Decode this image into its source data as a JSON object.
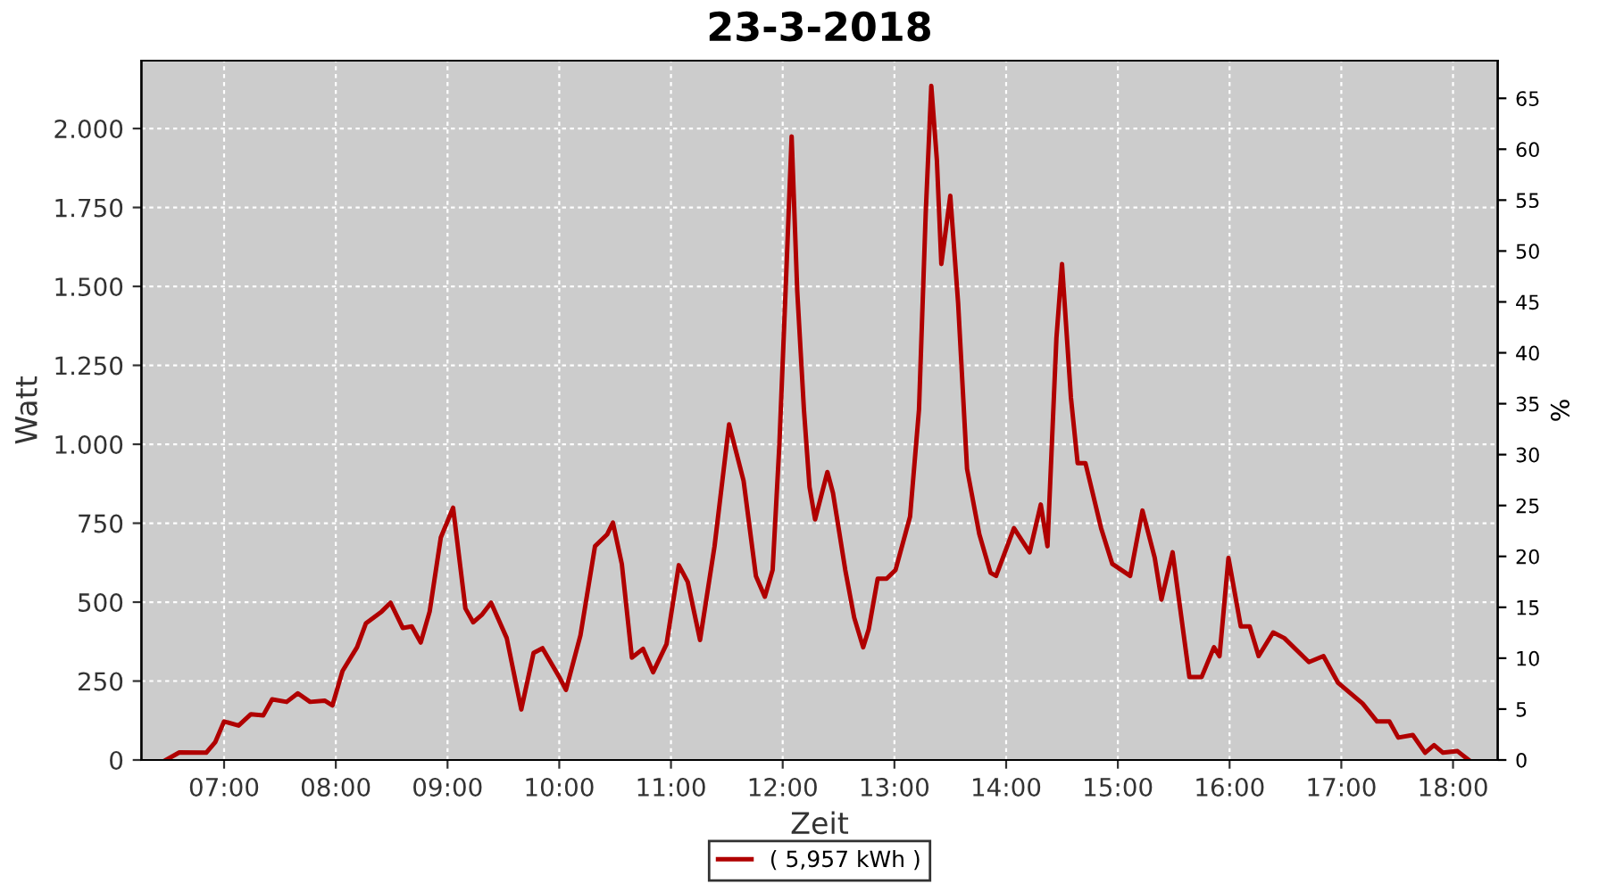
{
  "chart_data": {
    "type": "line",
    "title": "23-3-2018",
    "xlabel": "Zeit",
    "ylabel": "Watt",
    "y2label": "%",
    "xlim": [
      6.26,
      18.4
    ],
    "xticks": [
      {
        "value": 7,
        "label": "07:00"
      },
      {
        "value": 8,
        "label": "08:00"
      },
      {
        "value": 9,
        "label": "09:00"
      },
      {
        "value": 10,
        "label": "10:00"
      },
      {
        "value": 11,
        "label": "11:00"
      },
      {
        "value": 12,
        "label": "12:00"
      },
      {
        "value": 13,
        "label": "13:00"
      },
      {
        "value": 14,
        "label": "14:00"
      },
      {
        "value": 15,
        "label": "15:00"
      },
      {
        "value": 16,
        "label": "16:00"
      },
      {
        "value": 17,
        "label": "17:00"
      },
      {
        "value": 18,
        "label": "18:00"
      }
    ],
    "ylim": [
      0,
      2215
    ],
    "yticks": [
      0,
      250,
      500,
      750,
      {
        "value": 1000,
        "label": "1.000"
      },
      {
        "value": 1250,
        "label": "1.250"
      },
      {
        "value": 1500,
        "label": "1.500"
      },
      {
        "value": 1750,
        "label": "1.750"
      },
      {
        "value": 2000,
        "label": "2.000"
      }
    ],
    "y2lim": [
      0,
      68.7
    ],
    "y2ticks": [
      0,
      5,
      10,
      15,
      20,
      25,
      30,
      35,
      40,
      45,
      50,
      55,
      60,
      65
    ],
    "grid": true,
    "legend": "bottom",
    "marker": "none",
    "line_style": "solid",
    "series": [
      {
        "name": "( 5,957 kWh )",
        "color": "#b00000",
        "x": [
          6.48,
          6.6,
          6.84,
          6.92,
          7.0,
          7.13,
          7.24,
          7.35,
          7.43,
          7.56,
          7.66,
          7.77,
          7.9,
          7.97,
          8.06,
          8.19,
          8.27,
          8.41,
          8.49,
          8.6,
          8.68,
          8.76,
          8.84,
          8.94,
          9.05,
          9.16,
          9.23,
          9.31,
          9.39,
          9.53,
          9.66,
          9.77,
          9.85,
          10.0,
          10.06,
          10.19,
          10.32,
          10.43,
          10.48,
          10.56,
          10.65,
          10.75,
          10.84,
          10.96,
          11.07,
          11.15,
          11.26,
          11.39,
          11.52,
          11.65,
          11.76,
          11.84,
          11.91,
          11.97,
          12.03,
          12.08,
          12.13,
          12.19,
          12.24,
          12.29,
          12.4,
          12.45,
          12.56,
          12.64,
          12.72,
          12.77,
          12.85,
          12.93,
          13.01,
          13.14,
          13.22,
          13.28,
          13.33,
          13.38,
          13.42,
          13.5,
          13.57,
          13.65,
          13.76,
          13.86,
          13.91,
          14.07,
          14.21,
          14.31,
          14.37,
          14.45,
          14.5,
          14.58,
          14.64,
          14.71,
          14.85,
          14.95,
          15.11,
          15.22,
          15.33,
          15.39,
          15.49,
          15.64,
          15.75,
          15.86,
          15.91,
          15.99,
          16.1,
          16.18,
          16.26,
          16.39,
          16.49,
          16.71,
          16.84,
          16.97,
          17.19,
          17.32,
          17.43,
          17.51,
          17.64,
          17.75,
          17.83,
          17.91,
          18.04,
          18.14
        ],
        "values": [
          0,
          24,
          23,
          56,
          122,
          109,
          145,
          141,
          192,
          184,
          211,
          184,
          188,
          173,
          282,
          357,
          433,
          470,
          498,
          418,
          423,
          372,
          470,
          705,
          799,
          480,
          436,
          461,
          498,
          386,
          160,
          339,
          354,
          263,
          222,
          395,
          677,
          715,
          752,
          621,
          324,
          352,
          278,
          367,
          617,
          564,
          380,
          677,
          1063,
          884,
          583,
          517,
          602,
          997,
          1523,
          1975,
          1486,
          1110,
          865,
          762,
          912,
          846,
          602,
          451,
          357,
          414,
          574,
          574,
          602,
          771,
          1110,
          1731,
          2135,
          1900,
          1571,
          1787,
          1448,
          922,
          715,
          593,
          583,
          734,
          658,
          809,
          677,
          1336,
          1571,
          1147,
          940,
          940,
          734,
          621,
          583,
          790,
          640,
          508,
          658,
          263,
          263,
          357,
          329,
          640,
          423,
          423,
          329,
          404,
          386,
          310,
          329,
          245,
          179,
          122,
          122,
          71,
          79,
          23,
          47,
          23,
          28,
          0
        ]
      }
    ]
  }
}
